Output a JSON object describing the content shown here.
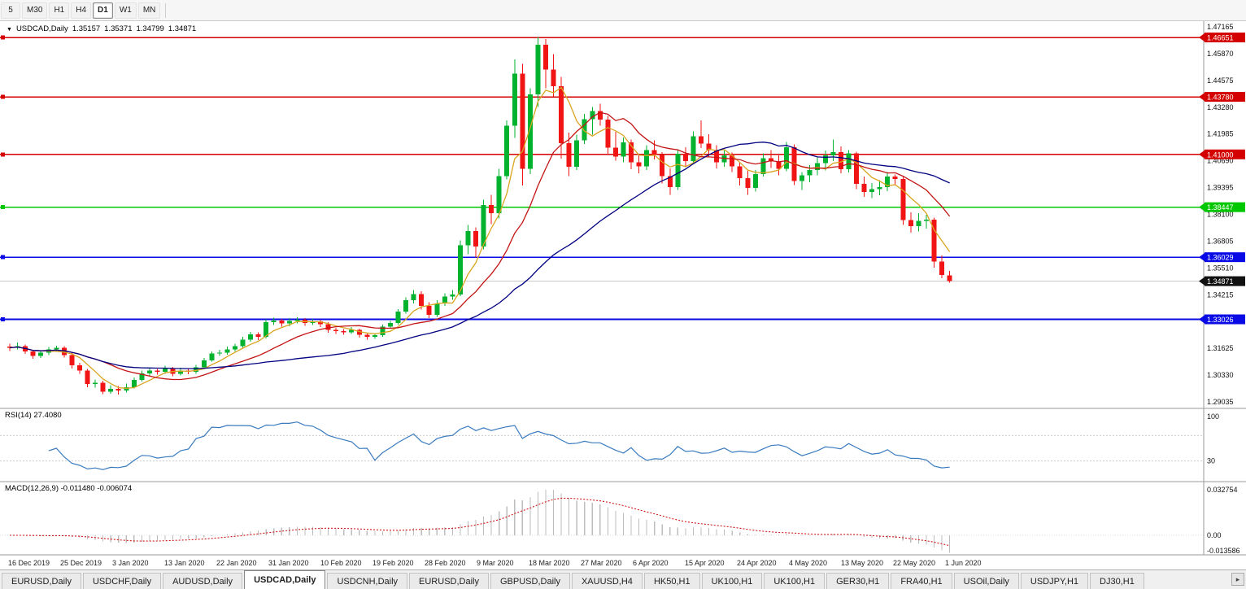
{
  "toolbar": {
    "timeframes": [
      {
        "label": "5",
        "active": false
      },
      {
        "label": "M30",
        "active": false
      },
      {
        "label": "H1",
        "active": false
      },
      {
        "label": "H4",
        "active": false
      },
      {
        "label": "D1",
        "active": true
      },
      {
        "label": "W1",
        "active": false
      },
      {
        "label": "MN",
        "active": false
      }
    ]
  },
  "chart_header": {
    "collapse_icon": "▼",
    "symbol": "USDCAD,Daily",
    "open": "1.35157",
    "high": "1.35371",
    "low": "1.34799",
    "close": "1.34871"
  },
  "indicators": {
    "rsi_label": "RSI(14) 27.4080",
    "macd_label": "MACD(12,26,9) -0.011480 -0.006074"
  },
  "price_axis_labels": [
    "1.47165",
    "1.45870",
    "1.44575",
    "1.43280",
    "1.41985",
    "1.40690",
    "1.39395",
    "1.38100",
    "1.36805",
    "1.35510",
    "1.34215",
    "1.32920",
    "1.31625",
    "1.30330",
    "1.29035"
  ],
  "rsi_axis_labels": [
    {
      "value": 100,
      "label": "100"
    },
    {
      "value": 30,
      "label": "30"
    }
  ],
  "macd_axis_labels": [
    "0.032754",
    "0.00",
    "-0.013586"
  ],
  "levels": [
    {
      "price": 1.46651,
      "label": "1.46651",
      "color": "#d40000"
    },
    {
      "price": 1.4378,
      "label": "1.43780",
      "color": "#d40000"
    },
    {
      "price": 1.41,
      "label": "1.41000",
      "color": "#d40000"
    },
    {
      "price": 1.38447,
      "label": "1.38447",
      "color": "#00c800"
    },
    {
      "price": 1.36029,
      "label": "1.36029",
      "color": "#0a0ae6"
    },
    {
      "price": 1.33026,
      "label": "1.33026",
      "color": "#0a0ae6"
    }
  ],
  "current_price": {
    "text": "1.34871",
    "value": 1.34871,
    "badge_color": "#111111"
  },
  "time_axis": {
    "labels": [
      "16 Dec 2019",
      "25 Dec 2019",
      "3 Jan 2020",
      "13 Jan 2020",
      "22 Jan 2020",
      "31 Jan 2020",
      "10 Feb 2020",
      "19 Feb 2020",
      "28 Feb 2020",
      "9 Mar 2020",
      "18 Mar 2020",
      "27 Mar 2020",
      "6 Apr 2020",
      "15 Apr 2020",
      "24 Apr 2020",
      "4 May 2020",
      "13 May 2020",
      "22 May 2020",
      "1 Jun 2020"
    ]
  },
  "tab_bar": {
    "scroll_right_icon": "▸",
    "tabs": [
      {
        "label": "EURUSD,Daily",
        "active": false
      },
      {
        "label": "USDCHF,Daily",
        "active": false
      },
      {
        "label": "AUDUSD,Daily",
        "active": false
      },
      {
        "label": "USDCAD,Daily",
        "active": true
      },
      {
        "label": "USDCNH,Daily",
        "active": false
      },
      {
        "label": "EURUSD,Daily",
        "active": false
      },
      {
        "label": "GBPUSD,Daily",
        "active": false
      },
      {
        "label": "XAUUSD,H4",
        "active": false
      },
      {
        "label": "HK50,H1",
        "active": false
      },
      {
        "label": "UK100,H1",
        "active": false
      },
      {
        "label": "UK100,H1",
        "active": false
      },
      {
        "label": "GER30,H1",
        "active": false
      },
      {
        "label": "FRA40,H1",
        "active": false
      },
      {
        "label": "USOil,Daily",
        "active": false
      },
      {
        "label": "USDJPY,H1",
        "active": false
      },
      {
        "label": "DJ30,H1",
        "active": false
      }
    ]
  },
  "colors": {
    "up": "#00b22d",
    "down": "#f01414",
    "rsi": "#3a7bbf",
    "macd_hist": "#bdbdbd",
    "macd_signal": "#d01818",
    "bid_line": "#c4c4c4",
    "separator": "#9a9a9a"
  },
  "chart_data": {
    "type": "candlestick",
    "symbol": "USDCAD",
    "timeframe": "Daily",
    "title": "USDCAD Daily with RSI(14) and MACD(12,26,9)",
    "x_range": [
      "16 Dec 2019",
      "2 Jun 2020"
    ],
    "y_range": [
      1.2872,
      1.4744
    ],
    "horizontal_levels": [
      1.46651,
      1.4378,
      1.41,
      1.38447,
      1.36029,
      1.33026
    ],
    "last_ohlc": {
      "open": 1.35157,
      "high": 1.35371,
      "low": 1.34799,
      "close": 1.34871
    },
    "moving_averages": [
      {
        "period": 5,
        "color": "#d9a520"
      },
      {
        "period": 13,
        "color": "#c41414"
      },
      {
        "period": 34,
        "color": "#000080"
      }
    ],
    "rsi": {
      "period": 14,
      "current": 27.408,
      "guides": [
        70,
        30
      ],
      "range": [
        0,
        100
      ]
    },
    "macd": {
      "fast": 12,
      "slow": 26,
      "signal_period": 9,
      "current_macd": -0.01148,
      "current_signal": -0.006074,
      "axis_max": 0.032754,
      "axis_min": -0.013586
    },
    "candles_ohlc": [
      [
        1.317,
        1.3185,
        1.315,
        1.3165
      ],
      [
        1.3165,
        1.319,
        1.3158,
        1.3172
      ],
      [
        1.3172,
        1.318,
        1.3135,
        1.3148
      ],
      [
        1.3148,
        1.3155,
        1.3112,
        1.3125
      ],
      [
        1.3125,
        1.3152,
        1.3115,
        1.3142
      ],
      [
        1.3142,
        1.3168,
        1.313,
        1.3158
      ],
      [
        1.3158,
        1.3175,
        1.3145,
        1.3165
      ],
      [
        1.3165,
        1.3172,
        1.3118,
        1.313
      ],
      [
        1.313,
        1.314,
        1.3065,
        1.308
      ],
      [
        1.308,
        1.3092,
        1.304,
        1.3055
      ],
      [
        1.3055,
        1.3062,
        1.2975,
        1.299
      ],
      [
        1.299,
        1.3012,
        1.2972,
        1.2995
      ],
      [
        1.2995,
        1.3005,
        1.294,
        1.2952
      ],
      [
        1.2952,
        1.2985,
        1.2942,
        1.2966
      ],
      [
        1.2966,
        1.298,
        1.2938,
        1.2958
      ],
      [
        1.2958,
        1.2992,
        1.2948,
        1.2975
      ],
      [
        1.2975,
        1.3022,
        1.2968,
        1.301
      ],
      [
        1.301,
        1.3055,
        1.3002,
        1.3042
      ],
      [
        1.3042,
        1.3068,
        1.303,
        1.3055
      ],
      [
        1.3055,
        1.3062,
        1.3035,
        1.3048
      ],
      [
        1.3048,
        1.3078,
        1.304,
        1.3065
      ],
      [
        1.3065,
        1.3072,
        1.3028,
        1.304
      ],
      [
        1.304,
        1.3068,
        1.3032,
        1.3055
      ],
      [
        1.3055,
        1.3065,
        1.3038,
        1.3048
      ],
      [
        1.3048,
        1.3082,
        1.304,
        1.307
      ],
      [
        1.307,
        1.3115,
        1.3062,
        1.3105
      ],
      [
        1.3105,
        1.3148,
        1.3098,
        1.3138
      ],
      [
        1.3138,
        1.3155,
        1.3125,
        1.3142
      ],
      [
        1.3142,
        1.317,
        1.3132,
        1.3158
      ],
      [
        1.3158,
        1.3185,
        1.3148,
        1.3172
      ],
      [
        1.3172,
        1.3218,
        1.3165,
        1.3205
      ],
      [
        1.3205,
        1.3242,
        1.3195,
        1.323
      ],
      [
        1.323,
        1.324,
        1.3202,
        1.3218
      ],
      [
        1.3218,
        1.3302,
        1.321,
        1.3288
      ],
      [
        1.3288,
        1.331,
        1.3275,
        1.3296
      ],
      [
        1.3296,
        1.3305,
        1.3268,
        1.3282
      ],
      [
        1.3282,
        1.3308,
        1.327,
        1.3295
      ],
      [
        1.3295,
        1.3312,
        1.3282,
        1.33
      ],
      [
        1.33,
        1.3308,
        1.3272,
        1.3285
      ],
      [
        1.3285,
        1.3305,
        1.3275,
        1.3292
      ],
      [
        1.3292,
        1.33,
        1.3265,
        1.328
      ],
      [
        1.328,
        1.3288,
        1.3238,
        1.3252
      ],
      [
        1.3252,
        1.3262,
        1.3232,
        1.3245
      ],
      [
        1.3245,
        1.3255,
        1.3228,
        1.324
      ],
      [
        1.324,
        1.3265,
        1.3232,
        1.3252
      ],
      [
        1.3252,
        1.3258,
        1.3215,
        1.3228
      ],
      [
        1.3228,
        1.3238,
        1.3205,
        1.3218
      ],
      [
        1.3218,
        1.3235,
        1.3208,
        1.3225
      ],
      [
        1.3225,
        1.3278,
        1.3218,
        1.3268
      ],
      [
        1.3268,
        1.3295,
        1.3258,
        1.3285
      ],
      [
        1.3285,
        1.3352,
        1.3278,
        1.334
      ],
      [
        1.334,
        1.3408,
        1.333,
        1.3395
      ],
      [
        1.3395,
        1.3445,
        1.338,
        1.3425
      ],
      [
        1.3425,
        1.3438,
        1.335,
        1.3368
      ],
      [
        1.3368,
        1.3385,
        1.3308,
        1.3325
      ],
      [
        1.3325,
        1.3395,
        1.3315,
        1.338
      ],
      [
        1.338,
        1.3428,
        1.3368,
        1.3412
      ],
      [
        1.3412,
        1.3445,
        1.3398,
        1.3422
      ],
      [
        1.3422,
        1.3685,
        1.3415,
        1.366
      ],
      [
        1.366,
        1.3758,
        1.3618,
        1.373
      ],
      [
        1.373,
        1.3748,
        1.3602,
        1.3655
      ],
      [
        1.3655,
        1.388,
        1.364,
        1.3855
      ],
      [
        1.3855,
        1.3905,
        1.3762,
        1.3815
      ],
      [
        1.3815,
        1.403,
        1.379,
        1.3995
      ],
      [
        1.3995,
        1.4265,
        1.398,
        1.4238
      ],
      [
        1.4238,
        1.456,
        1.418,
        1.449
      ],
      [
        1.449,
        1.4538,
        1.395,
        1.403
      ],
      [
        1.403,
        1.442,
        1.4005,
        1.439
      ],
      [
        1.439,
        1.4668,
        1.433,
        1.463
      ],
      [
        1.463,
        1.4658,
        1.442,
        1.451
      ],
      [
        1.451,
        1.4585,
        1.438,
        1.443
      ],
      [
        1.443,
        1.4475,
        1.408,
        1.4155
      ],
      [
        1.4155,
        1.4205,
        1.3995,
        1.404
      ],
      [
        1.404,
        1.4195,
        1.4025,
        1.4168
      ],
      [
        1.4168,
        1.4295,
        1.415,
        1.427
      ],
      [
        1.427,
        1.433,
        1.4195,
        1.431
      ],
      [
        1.431,
        1.4345,
        1.4238,
        1.4268
      ],
      [
        1.4268,
        1.4285,
        1.4098,
        1.4132
      ],
      [
        1.4132,
        1.421,
        1.407,
        1.409
      ],
      [
        1.409,
        1.4182,
        1.4062,
        1.4158
      ],
      [
        1.4158,
        1.4172,
        1.4028,
        1.4062
      ],
      [
        1.4062,
        1.4098,
        1.4008,
        1.4042
      ],
      [
        1.4042,
        1.4145,
        1.4025,
        1.412
      ],
      [
        1.412,
        1.4168,
        1.4075,
        1.4098
      ],
      [
        1.4098,
        1.411,
        1.396,
        1.3995
      ],
      [
        1.3995,
        1.4032,
        1.3905,
        1.3942
      ],
      [
        1.3942,
        1.4125,
        1.3928,
        1.4102
      ],
      [
        1.4102,
        1.4135,
        1.4042,
        1.4068
      ],
      [
        1.4068,
        1.4212,
        1.4052,
        1.4188
      ],
      [
        1.4188,
        1.4265,
        1.413,
        1.4152
      ],
      [
        1.4152,
        1.4198,
        1.4088,
        1.412
      ],
      [
        1.412,
        1.4145,
        1.4032,
        1.4062
      ],
      [
        1.4062,
        1.4118,
        1.404,
        1.4095
      ],
      [
        1.4095,
        1.4108,
        1.4015,
        1.4042
      ],
      [
        1.4042,
        1.4062,
        1.395,
        1.3985
      ],
      [
        1.3985,
        1.402,
        1.3905,
        1.3938
      ],
      [
        1.3938,
        1.4025,
        1.392,
        1.4005
      ],
      [
        1.4005,
        1.4105,
        1.3992,
        1.4082
      ],
      [
        1.4082,
        1.412,
        1.4035,
        1.4066
      ],
      [
        1.4066,
        1.4095,
        1.3998,
        1.403
      ],
      [
        1.403,
        1.416,
        1.4018,
        1.4135
      ],
      [
        1.4135,
        1.4148,
        1.3952,
        1.3972
      ],
      [
        1.3972,
        1.4015,
        1.3928,
        1.3998
      ],
      [
        1.3998,
        1.4048,
        1.3965,
        1.4025
      ],
      [
        1.4025,
        1.4085,
        1.3998,
        1.4058
      ],
      [
        1.4058,
        1.4118,
        1.4022,
        1.4095
      ],
      [
        1.4095,
        1.4172,
        1.4068,
        1.411
      ],
      [
        1.411,
        1.4138,
        1.4008,
        1.4028
      ],
      [
        1.4028,
        1.412,
        1.4012,
        1.4105
      ],
      [
        1.4105,
        1.4112,
        1.3932,
        1.3958
      ],
      [
        1.3958,
        1.3992,
        1.3895,
        1.3918
      ],
      [
        1.3918,
        1.3962,
        1.3888,
        1.3932
      ],
      [
        1.3932,
        1.3975,
        1.3902,
        1.3942
      ],
      [
        1.3942,
        1.4015,
        1.3922,
        1.3992
      ],
      [
        1.3992,
        1.4002,
        1.3955,
        1.3982
      ],
      [
        1.3982,
        1.3995,
        1.3758,
        1.3782
      ],
      [
        1.3782,
        1.382,
        1.3722,
        1.3752
      ],
      [
        1.3752,
        1.3815,
        1.3728,
        1.3778
      ],
      [
        1.3778,
        1.3808,
        1.3742,
        1.3785
      ],
      [
        1.3785,
        1.3795,
        1.3552,
        1.3582
      ],
      [
        1.3582,
        1.3612,
        1.3502,
        1.3516
      ],
      [
        1.35157,
        1.35371,
        1.34799,
        1.34871
      ]
    ]
  }
}
